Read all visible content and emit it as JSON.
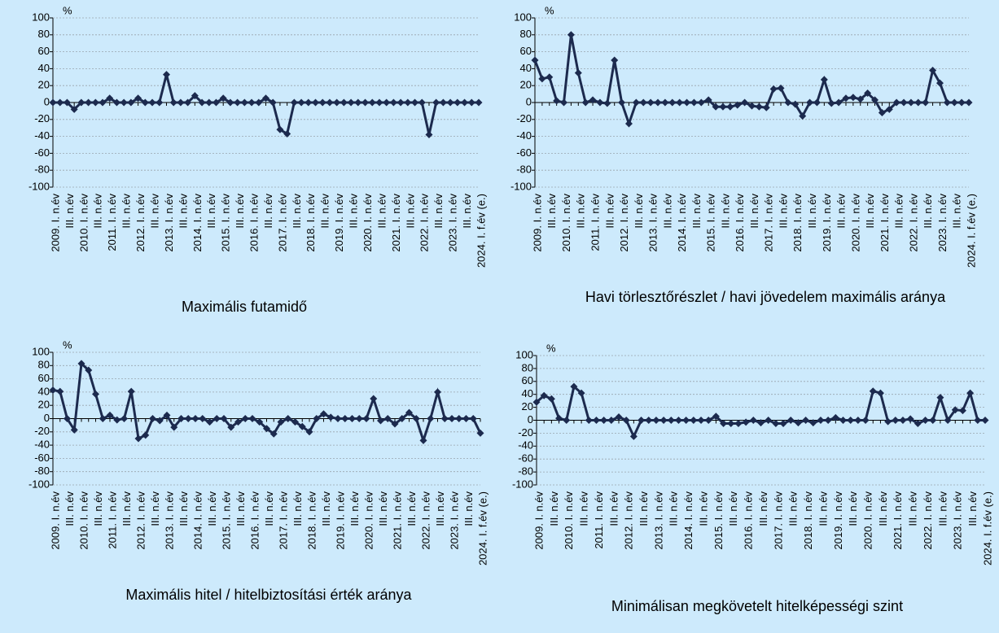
{
  "chart_data": [
    {
      "type": "line",
      "title": "Maximális futamidő",
      "y_unit": "%",
      "color": "#1c2a4e",
      "grid": true,
      "categories": [
        "2009. I. n.év",
        null,
        "III. n.év",
        null,
        "2010. I. n.év",
        null,
        "III. n.év",
        null,
        "2011. I. n.év",
        null,
        "III. n.év",
        null,
        "2012. I. n.év",
        null,
        "III. n.év",
        null,
        "2013. I. n.év",
        null,
        "III. n.év",
        null,
        "2014. I. n.év",
        null,
        "III. n.év",
        null,
        "2015. I. n.év",
        null,
        "III. n.év",
        null,
        "2016. I. n.év",
        null,
        "III. n.év",
        null,
        "2017. I. n.év",
        null,
        "III. n.év",
        null,
        "2018. I. n.év",
        null,
        "III. n.év",
        null,
        "2019. I. n.év",
        null,
        "III. n.év",
        null,
        "2020. I. n.év",
        null,
        "III. n.év",
        null,
        "2021. I. n.év",
        null,
        "III. n.év",
        null,
        "2022. I. n.év",
        null,
        "III. n.év",
        null,
        "2023. I. n.év",
        null,
        "III. n.év",
        null,
        "2024. I. f.év (e.)"
      ],
      "values": [
        0,
        0,
        0,
        -8,
        0,
        0,
        0,
        0,
        5,
        0,
        0,
        0,
        5,
        0,
        0,
        0,
        33,
        0,
        0,
        0,
        8,
        0,
        0,
        0,
        5,
        0,
        0,
        0,
        0,
        0,
        5,
        0,
        -32,
        -37,
        0,
        0,
        0,
        0,
        0,
        0,
        0,
        0,
        0,
        0,
        0,
        0,
        0,
        0,
        0,
        0,
        0,
        0,
        0,
        -38,
        0,
        0,
        0,
        0,
        0,
        0,
        0
      ],
      "ylim": [
        -100,
        100
      ],
      "yticks": [
        -100,
        -80,
        -60,
        -40,
        -20,
        0,
        20,
        40,
        60,
        80,
        100
      ]
    },
    {
      "type": "line",
      "title": "Havi törlesztőrészlet / havi jövedelem maximális aránya",
      "y_unit": "%",
      "color": "#1c2a4e",
      "grid": true,
      "categories": [
        "2009. I. n.év",
        null,
        "III. n.év",
        null,
        "2010. I. n.év",
        null,
        "III. n.év",
        null,
        "2011. I. n.év",
        null,
        "III. n.év",
        null,
        "2012. I. n.év",
        null,
        "III. n.év",
        null,
        "2013. I. n.év",
        null,
        "III. n.év",
        null,
        "2014. I. n.év",
        null,
        "III. n.év",
        null,
        "2015. I. n.év",
        null,
        "III. n.év",
        null,
        "2016. I. n.év",
        null,
        "III. n.év",
        null,
        "2017. I. n.év",
        null,
        "III. n.év",
        null,
        "2018. I. n.év",
        null,
        "III. n.év",
        null,
        "2019. I. n.év",
        null,
        "III. n.év",
        null,
        "2020. I. n.év",
        null,
        "III. n.év",
        null,
        "2021. I. n.év",
        null,
        "III. n.év",
        null,
        "2022. I. n.év",
        null,
        "III. n.év",
        null,
        "2023. I. n.év",
        null,
        "III. n.év",
        null,
        "2024. I. f.év (e.)"
      ],
      "values": [
        50,
        28,
        30,
        2,
        0,
        80,
        35,
        0,
        3,
        0,
        -1,
        50,
        0,
        -25,
        0,
        0,
        0,
        0,
        0,
        0,
        0,
        0,
        0,
        0,
        3,
        -5,
        -5,
        -5,
        -3,
        0,
        -4,
        -5,
        -6,
        16,
        17,
        0,
        -2,
        -16,
        0,
        0,
        27,
        -1,
        0,
        5,
        6,
        4,
        11,
        3,
        -12,
        -8,
        0,
        0,
        0,
        0,
        0,
        38,
        23,
        0,
        0,
        0,
        0
      ],
      "ylim": [
        -100,
        100
      ],
      "yticks": [
        -100,
        -80,
        -60,
        -40,
        -20,
        0,
        20,
        40,
        60,
        80,
        100
      ]
    },
    {
      "type": "line",
      "title": "Maximális hitel / hitelbiztosítási érték aránya",
      "y_unit": "%",
      "color": "#1c2a4e",
      "grid": true,
      "categories": [
        "2009. I. n.év",
        null,
        "III. n.év",
        null,
        "2010. I. n.év",
        null,
        "III. n.év",
        null,
        "2011. I. n.év",
        null,
        "III. n.év",
        null,
        "2012. I. n.év",
        null,
        "III. n.év",
        null,
        "2013. I. n.év",
        null,
        "III. n.év",
        null,
        "2014. I. n.év",
        null,
        "III. n.év",
        null,
        "2015. I. n.év",
        null,
        "III. n.év",
        null,
        "2016. I. n.év",
        null,
        "III. n.év",
        null,
        "2017. I. n.év",
        null,
        "III. n.év",
        null,
        "2018. I. n.év",
        null,
        "III. n.év",
        null,
        "2019. I. n.év",
        null,
        "III. n.év",
        null,
        "2020. I. n.év",
        null,
        "III. n.év",
        null,
        "2021. I. n.év",
        null,
        "III. n.év",
        null,
        "2022. I. n.év",
        null,
        "III. n.év",
        null,
        "2023. I. n.év",
        null,
        "III. n.év",
        null,
        "2024. I. f.év (e.)"
      ],
      "values": [
        43,
        41,
        0,
        -17,
        83,
        73,
        37,
        0,
        5,
        -2,
        0,
        41,
        -30,
        -25,
        0,
        -3,
        5,
        -13,
        0,
        0,
        0,
        0,
        -5,
        0,
        0,
        -13,
        -5,
        0,
        0,
        -5,
        -15,
        -23,
        -5,
        0,
        -5,
        -12,
        -20,
        0,
        7,
        2,
        0,
        0,
        0,
        0,
        0,
        30,
        -3,
        0,
        -8,
        0,
        9,
        0,
        -33,
        0,
        40,
        0,
        0,
        0,
        0,
        0,
        -22
      ],
      "ylim": [
        -100,
        100
      ],
      "yticks": [
        -100,
        -80,
        -60,
        -40,
        -20,
        0,
        20,
        40,
        60,
        80,
        100
      ]
    },
    {
      "type": "line",
      "title": "Minimálisan megkövetelt hitelképességi szint",
      "y_unit": "%",
      "color": "#1c2a4e",
      "grid": true,
      "categories": [
        "2009. I. n.év",
        null,
        "III. n.év",
        null,
        "2010. I. n.év",
        null,
        "III. n.év",
        null,
        "2011. I. n.év",
        null,
        "III. n.év",
        null,
        "2012. I. n.év",
        null,
        "III. n.év",
        null,
        "2013. I. n.év",
        null,
        "III. n.év",
        null,
        "2014. I. n.év",
        null,
        "III. n.év",
        null,
        "2015. I. n.év",
        null,
        "III. n.év",
        null,
        "2016. I. n.év",
        null,
        "III. n.év",
        null,
        "2017. I. n.év",
        null,
        "III. n.év",
        null,
        "2018. I. n.év",
        null,
        "III. n.év",
        null,
        "2019. I. n.év",
        null,
        "III. n.év",
        null,
        "2020. I. n.év",
        null,
        "III. n.év",
        null,
        "2021. I. n.év",
        null,
        "III. n.év",
        null,
        "2022. I. n.év",
        null,
        "III. n.év",
        null,
        "2023. I. n.év",
        null,
        "III. n.év",
        null,
        "2024. I. f.év (e.)"
      ],
      "values": [
        28,
        38,
        33,
        3,
        0,
        52,
        42,
        0,
        0,
        0,
        0,
        5,
        0,
        -25,
        0,
        0,
        0,
        0,
        0,
        0,
        0,
        0,
        0,
        0,
        6,
        -5,
        -5,
        -5,
        -3,
        0,
        -4,
        0,
        -5,
        -5,
        0,
        -4,
        0,
        -4,
        0,
        0,
        4,
        0,
        0,
        0,
        0,
        45,
        42,
        -2,
        0,
        0,
        2,
        -5,
        0,
        0,
        35,
        0,
        16,
        15,
        42,
        0,
        0
      ],
      "ylim": [
        -100,
        100
      ],
      "yticks": [
        -100,
        -80,
        -60,
        -40,
        -20,
        0,
        20,
        40,
        60,
        80,
        100
      ]
    }
  ]
}
